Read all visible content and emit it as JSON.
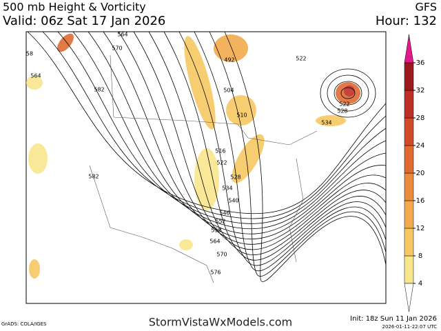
{
  "header": {
    "title": "500 mb Height & Vorticity",
    "valid": "Valid: 06z Sat 17 Jan 2026",
    "model": "GFS",
    "hour": "Hour: 132"
  },
  "colorbar": {
    "ticks": [
      4,
      8,
      12,
      16,
      20,
      24,
      28,
      32,
      36
    ],
    "colors": [
      "#f8e68c",
      "#f6c863",
      "#f2aa4c",
      "#eb8c3c",
      "#e06a31",
      "#d24a2b",
      "#bd2e27",
      "#9c1a1c"
    ],
    "over_color": "#e2198a"
  },
  "contour_labels": [
    "564",
    "570",
    "58",
    "564",
    "582",
    "582",
    "492",
    "504",
    "510",
    "516",
    "522",
    "528",
    "534",
    "540",
    "546",
    "552",
    "558",
    "564",
    "570",
    "576",
    "522",
    "522",
    "528",
    "534"
  ],
  "footer": {
    "credit": "GrADS: COLA/IGES",
    "site": "StormVistaWxModels.com",
    "init": "Init: 18z Sun 11 Jan 2026",
    "stamp": "2026-01-11-22:07 UTC"
  }
}
